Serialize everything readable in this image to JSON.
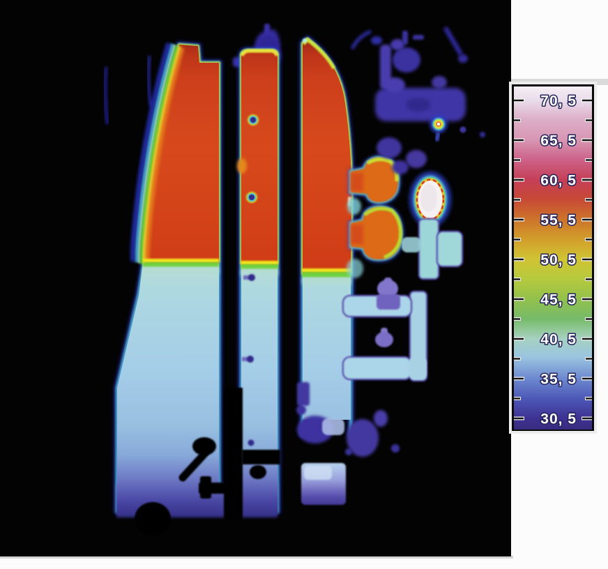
{
  "meta": {
    "description": "Infrared thermogram of a heating installation: three storage panels hot (red) in the upper half with a sharp thermocline to cool (light blue) below, connected piping with valves, two white-hot fittings, black cold background",
    "background_color": "#030303",
    "page_color": "#fcfcfc"
  },
  "scale": {
    "labels": [
      "70, 5",
      "65, 5",
      "60, 5",
      "55, 5",
      "50, 5",
      "45, 5",
      "40, 5",
      "35, 5",
      "30, 5"
    ],
    "values": [
      70.5,
      65.5,
      60.5,
      55.5,
      50.5,
      45.5,
      40.5,
      35.5,
      30.5
    ],
    "min": 30.5,
    "max": 70.5,
    "step": 5,
    "label_color": "#ffffff",
    "label_outline_color": "#23235a",
    "frame_color": "#0a0a0a",
    "gradient": [
      {
        "offset": 0.0,
        "color": "#f4eef5"
      },
      {
        "offset": 0.041,
        "color": "#e9dcea"
      },
      {
        "offset": 0.094,
        "color": "#ddafc8"
      },
      {
        "offset": 0.157,
        "color": "#d795b2"
      },
      {
        "offset": 0.211,
        "color": "#cd6489"
      },
      {
        "offset": 0.272,
        "color": "#c53f57"
      },
      {
        "offset": 0.327,
        "color": "#c74836"
      },
      {
        "offset": 0.388,
        "color": "#cd742b"
      },
      {
        "offset": 0.447,
        "color": "#d29f2a"
      },
      {
        "offset": 0.504,
        "color": "#d0c434"
      },
      {
        "offset": 0.561,
        "color": "#b6ca3d"
      },
      {
        "offset": 0.62,
        "color": "#93c14c"
      },
      {
        "offset": 0.677,
        "color": "#76ba6a"
      },
      {
        "offset": 0.707,
        "color": "#90c795"
      },
      {
        "offset": 0.736,
        "color": "#a6d1c2"
      },
      {
        "offset": 0.789,
        "color": "#99c5e1"
      },
      {
        "offset": 0.852,
        "color": "#6d88cf"
      },
      {
        "offset": 0.911,
        "color": "#4c57b6"
      },
      {
        "offset": 0.967,
        "color": "#3e3293"
      },
      {
        "offset": 1.0,
        "color": "#372b7e"
      }
    ]
  },
  "palette": {
    "hot_core": "#d7491c",
    "hot_rim_yellow": "#e8d22a",
    "rim_green": "#5bcc34",
    "rim_cyan": "#55cde4",
    "glow_blue": "#2530c2",
    "cool_surface": "#a4cde8",
    "cool_violet": "#2d2980",
    "pipe_violet": "#4136a6",
    "pipe_cyan": "#a5d6da",
    "white_hot": "#f5f1f3"
  },
  "chart_data": {
    "type": "heatmap",
    "legend": {
      "tick_labels": [
        "70, 5",
        "65, 5",
        "60, 5",
        "55, 5",
        "50, 5",
        "45, 5",
        "40, 5",
        "35, 5",
        "30, 5"
      ],
      "values": [
        70.5,
        65.5,
        60.5,
        55.5,
        50.5,
        45.5,
        40.5,
        35.5,
        30.5
      ],
      "range": [
        30.5,
        70.5
      ],
      "position": "right"
    }
  }
}
